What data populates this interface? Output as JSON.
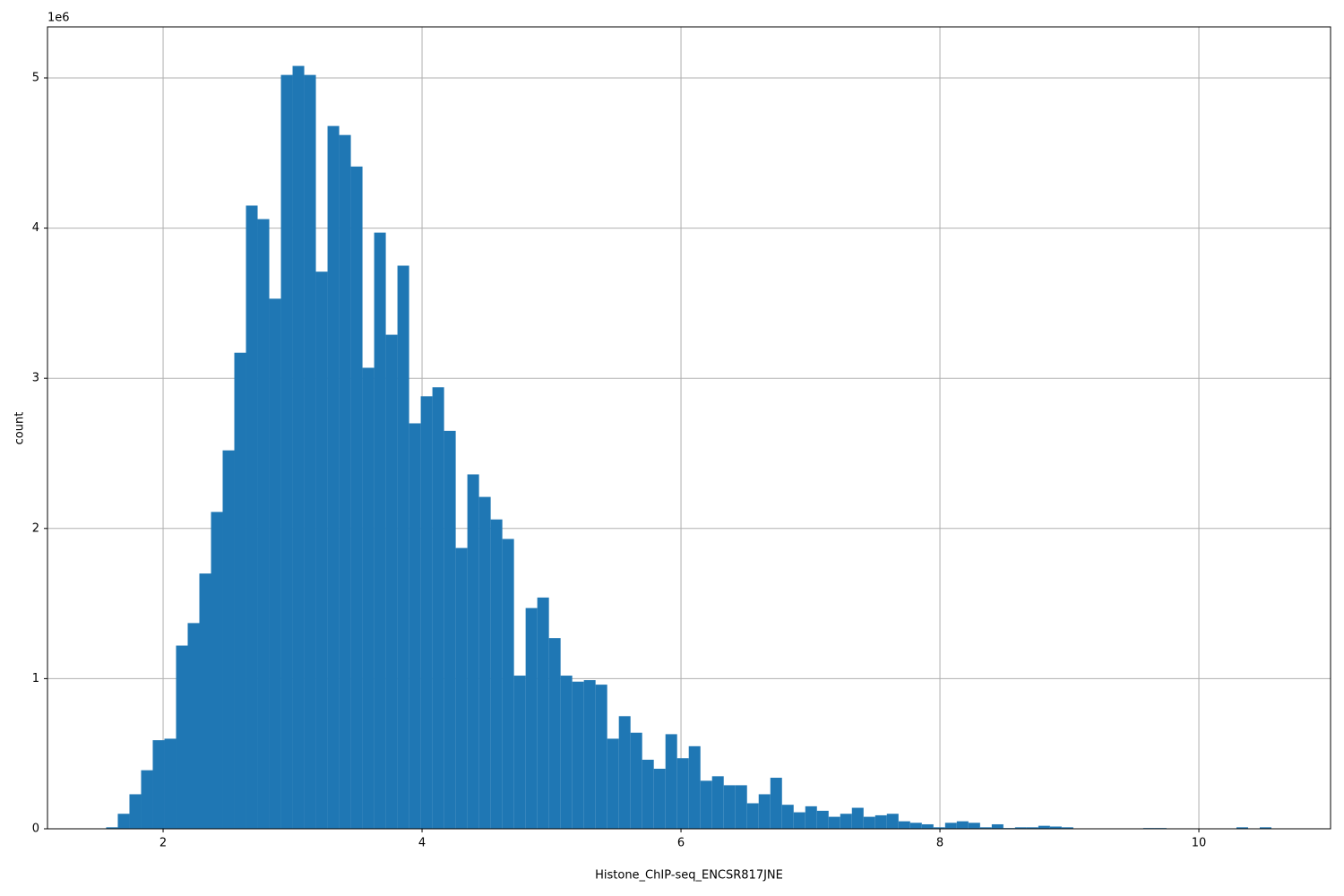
{
  "chart_data": {
    "type": "histogram",
    "x_label": "Histone_ChIP-seq_ENCSR817JNE",
    "y_label": "count",
    "y_offset_label": "1e6",
    "bins": [
      1.56,
      1.65,
      1.74,
      1.83,
      1.92,
      2.01,
      2.1,
      2.19,
      2.28,
      2.37,
      2.46,
      2.55,
      2.64,
      2.73,
      2.82,
      2.91,
      3,
      3.09,
      3.18,
      3.27,
      3.36,
      3.45,
      3.54,
      3.63,
      3.72,
      3.81,
      3.9,
      3.99,
      4.08,
      4.17,
      4.26,
      4.35,
      4.44,
      4.53,
      4.62,
      4.71,
      4.8,
      4.89,
      4.98,
      5.07,
      5.16,
      5.25,
      5.34,
      5.43,
      5.52,
      5.61,
      5.7,
      5.79,
      5.88,
      5.97,
      6.06,
      6.15,
      6.24,
      6.33,
      6.42,
      6.51,
      6.6,
      6.69,
      6.78,
      6.87,
      6.96,
      7.05,
      7.14,
      7.23,
      7.32,
      7.41,
      7.5,
      7.59,
      7.68,
      7.77,
      7.86,
      7.95,
      8.04,
      8.13,
      8.22,
      8.31,
      8.4,
      8.49,
      8.58,
      8.67,
      8.76,
      8.85,
      8.94,
      9.03,
      9.12,
      9.21,
      9.3,
      9.39,
      9.48,
      9.57,
      9.66,
      9.75,
      9.84,
      9.93,
      10.02,
      10.11,
      10.2,
      10.29,
      10.38,
      10.47,
      10.56
    ],
    "values": [
      0.01,
      0.1,
      0.23,
      0.39,
      0.59,
      0.6,
      1.22,
      1.37,
      1.7,
      2.11,
      2.52,
      3.17,
      4.15,
      4.06,
      3.53,
      5.02,
      5.08,
      5.02,
      3.71,
      4.68,
      4.62,
      4.41,
      3.07,
      3.97,
      3.29,
      3.75,
      2.7,
      2.88,
      2.94,
      2.65,
      1.87,
      2.36,
      2.21,
      2.06,
      1.93,
      1.02,
      1.47,
      1.54,
      1.27,
      1.02,
      0.98,
      0.99,
      0.96,
      0.6,
      0.75,
      0.64,
      0.46,
      0.4,
      0.63,
      0.47,
      0.55,
      0.32,
      0.35,
      0.29,
      0.29,
      0.17,
      0.23,
      0.34,
      0.16,
      0.11,
      0.15,
      0.12,
      0.08,
      0.1,
      0.14,
      0.08,
      0.09,
      0.1,
      0.05,
      0.04,
      0.03,
      0.01,
      0.04,
      0.05,
      0.04,
      0.01,
      0.03,
      0.005,
      0.01,
      0.01,
      0.02,
      0.015,
      0.01,
      0,
      0,
      0,
      0,
      0,
      0,
      0.005,
      0.005,
      0,
      0,
      0,
      0,
      0,
      0,
      0.01,
      0,
      0.01
    ],
    "color": "#1f77b4",
    "xlim": [
      1.107,
      11.017
    ],
    "ylim": [
      0,
      5.34
    ],
    "xticks": [
      2,
      4,
      6,
      8,
      10
    ],
    "yticks": [
      0,
      1,
      2,
      3,
      4,
      5
    ],
    "grid": true
  }
}
